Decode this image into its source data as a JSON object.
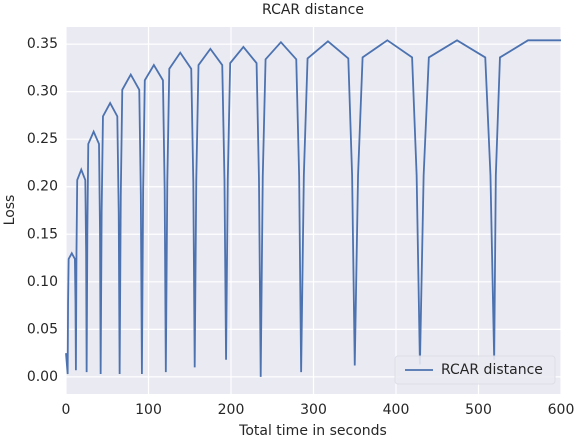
{
  "chart_data": {
    "type": "line",
    "title": "RCAR distance",
    "x_label": "Total time in seconds",
    "y_label": "Loss",
    "series": [
      {
        "name": "RCAR distance",
        "color": "#4c72b0",
        "x": [
          0,
          2,
          2.5,
          3.2,
          7,
          10.8,
          11.5,
          12,
          12.7,
          13.6,
          18.5,
          23.4,
          24.4,
          25,
          25.9,
          27,
          33.5,
          40,
          41.2,
          42,
          43.2,
          44.8,
          53.5,
          62.2,
          63.9,
          65,
          66.4,
          68.2,
          78.5,
          88.8,
          90.7,
          92,
          93.5,
          95.5,
          106.5,
          117.5,
          119.6,
          121,
          122.8,
          125.2,
          138.5,
          151.8,
          154.3,
          156,
          157.9,
          160.6,
          175,
          189.4,
          192.1,
          194,
          196.1,
          199,
          215,
          231,
          233.9,
          236,
          238.5,
          241.9,
          260.5,
          279.1,
          282.6,
          285,
          288.3,
          292.8,
          317.5,
          342.2,
          346.8,
          350,
          354,
          359.5,
          389.5,
          419.5,
          425,
          429,
          433.5,
          439.8,
          474,
          508.2,
          514.5,
          519,
          521,
          526,
          560,
          600
        ],
        "values": [
          0.025,
          0.003,
          0.078,
          0.124,
          0.13,
          0.124,
          0.078,
          0.007,
          0.131,
          0.207,
          0.218,
          0.207,
          0.131,
          0.005,
          0.155,
          0.245,
          0.258,
          0.245,
          0.155,
          0.003,
          0.173,
          0.274,
          0.288,
          0.274,
          0.173,
          0.003,
          0.191,
          0.302,
          0.318,
          0.302,
          0.191,
          0.003,
          0.197,
          0.312,
          0.328,
          0.312,
          0.197,
          0.005,
          0.205,
          0.324,
          0.341,
          0.324,
          0.205,
          0.01,
          0.207,
          0.328,
          0.345,
          0.328,
          0.207,
          0.018,
          0.208,
          0.33,
          0.347,
          0.33,
          0.208,
          0.0,
          0.211,
          0.334,
          0.352,
          0.334,
          0.211,
          0.005,
          0.212,
          0.335,
          0.353,
          0.335,
          0.212,
          0.012,
          0.212,
          0.336,
          0.354,
          0.336,
          0.212,
          0.013,
          0.212,
          0.336,
          0.354,
          0.336,
          0.212,
          0.018,
          0.212,
          0.336,
          0.354,
          0.354
        ]
      }
    ],
    "xlim": [
      0,
      600
    ],
    "xticks": [
      0,
      100,
      200,
      300,
      400,
      500,
      600
    ],
    "ylim": [
      -0.018,
      0.368
    ],
    "yticks": [
      {
        "value": 0,
        "label": "0.00"
      },
      {
        "value": 0.05,
        "label": "0.05"
      },
      {
        "value": 0.1,
        "label": "0.10"
      },
      {
        "value": 0.15,
        "label": "0.15"
      },
      {
        "value": 0.2,
        "label": "0.20"
      },
      {
        "value": 0.25,
        "label": "0.25"
      },
      {
        "value": 0.3,
        "label": "0.30"
      },
      {
        "value": 0.35,
        "label": "0.35"
      }
    ],
    "grid": true,
    "legend": "lower right"
  }
}
